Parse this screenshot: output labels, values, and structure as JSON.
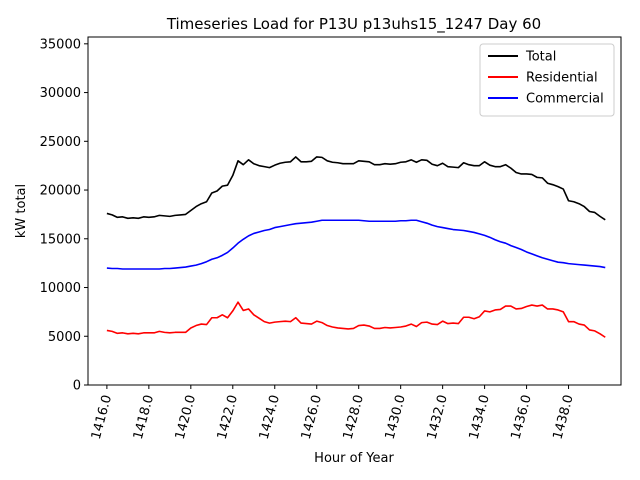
{
  "chart_data": {
    "type": "line",
    "title": "Timeseries Load for P13U p13uhs15_1247  Day 60",
    "xlabel": "Hour of Year",
    "ylabel": "kW total",
    "xlim": [
      1415.1,
      1440.5
    ],
    "ylim": [
      0,
      35700
    ],
    "xticks": [
      1416,
      1418,
      1420,
      1422,
      1424,
      1426,
      1428,
      1430,
      1432,
      1434,
      1436,
      1438
    ],
    "xtick_labels": [
      "1416.0",
      "1418.0",
      "1420.0",
      "1422.0",
      "1424.0",
      "1426.0",
      "1428.0",
      "1430.0",
      "1432.0",
      "1434.0",
      "1436.0",
      "1438.0"
    ],
    "yticks": [
      0,
      5000,
      10000,
      15000,
      20000,
      25000,
      30000,
      35000
    ],
    "ytick_labels": [
      "0",
      "5000",
      "10000",
      "15000",
      "20000",
      "25000",
      "30000",
      "35000"
    ],
    "legend_position": "top-right",
    "x": [
      1416.0,
      1416.25,
      1416.5,
      1416.75,
      1417.0,
      1417.25,
      1417.5,
      1417.75,
      1418.0,
      1418.25,
      1418.5,
      1418.75,
      1419.0,
      1419.25,
      1419.5,
      1419.75,
      1420.0,
      1420.25,
      1420.5,
      1420.75,
      1421.0,
      1421.25,
      1421.5,
      1421.75,
      1422.0,
      1422.25,
      1422.5,
      1422.75,
      1423.0,
      1423.25,
      1423.5,
      1423.75,
      1424.0,
      1424.25,
      1424.5,
      1424.75,
      1425.0,
      1425.25,
      1425.5,
      1425.75,
      1426.0,
      1426.25,
      1426.5,
      1426.75,
      1427.0,
      1427.25,
      1427.5,
      1427.75,
      1428.0,
      1428.25,
      1428.5,
      1428.75,
      1429.0,
      1429.25,
      1429.5,
      1429.75,
      1430.0,
      1430.25,
      1430.5,
      1430.75,
      1431.0,
      1431.25,
      1431.5,
      1431.75,
      1432.0,
      1432.25,
      1432.5,
      1432.75,
      1433.0,
      1433.25,
      1433.5,
      1433.75,
      1434.0,
      1434.25,
      1434.5,
      1434.75,
      1435.0,
      1435.25,
      1435.5,
      1435.75,
      1436.0,
      1436.25,
      1436.5,
      1436.75,
      1437.0,
      1437.25,
      1437.5,
      1437.75,
      1438.0,
      1438.25,
      1438.5,
      1438.75,
      1439.0,
      1439.25,
      1439.5,
      1439.75
    ],
    "series": [
      {
        "name": "Total",
        "color": "#000000",
        "values": [
          17600,
          17450,
          17200,
          17250,
          17100,
          17150,
          17100,
          17250,
          17200,
          17250,
          17400,
          17350,
          17300,
          17400,
          17450,
          17500,
          17900,
          18300,
          18600,
          18800,
          19700,
          19900,
          20400,
          20500,
          21500,
          23000,
          22600,
          23100,
          22700,
          22500,
          22400,
          22300,
          22550,
          22750,
          22850,
          22900,
          23400,
          22900,
          22900,
          22950,
          23400,
          23350,
          23000,
          22850,
          22800,
          22700,
          22700,
          22700,
          23000,
          22950,
          22900,
          22600,
          22600,
          22700,
          22650,
          22700,
          22850,
          22900,
          23100,
          22850,
          23100,
          23050,
          22650,
          22500,
          22750,
          22400,
          22350,
          22300,
          22800,
          22600,
          22500,
          22500,
          22900,
          22550,
          22400,
          22400,
          22600,
          22250,
          21800,
          21650,
          21650,
          21600,
          21300,
          21250,
          20700,
          20550,
          20350,
          20100,
          18900,
          18800,
          18600,
          18300,
          17800,
          17700,
          17300,
          16950
        ]
      },
      {
        "name": "Residential",
        "color": "#ff0000",
        "values": [
          5600,
          5500,
          5300,
          5350,
          5250,
          5300,
          5250,
          5350,
          5350,
          5350,
          5500,
          5400,
          5350,
          5400,
          5400,
          5400,
          5850,
          6100,
          6250,
          6200,
          6900,
          6900,
          7200,
          6900,
          7600,
          8500,
          7650,
          7800,
          7200,
          6850,
          6500,
          6350,
          6450,
          6500,
          6550,
          6500,
          6900,
          6350,
          6300,
          6250,
          6550,
          6400,
          6100,
          5950,
          5850,
          5800,
          5750,
          5800,
          6100,
          6150,
          6050,
          5800,
          5800,
          5900,
          5850,
          5900,
          5950,
          6050,
          6250,
          6000,
          6400,
          6450,
          6250,
          6200,
          6550,
          6300,
          6350,
          6300,
          6950,
          6950,
          6800,
          7000,
          7600,
          7500,
          7700,
          7750,
          8100,
          8100,
          7800,
          7850,
          8050,
          8200,
          8100,
          8200,
          7800,
          7800,
          7700,
          7500,
          6500,
          6500,
          6250,
          6150,
          5650,
          5550,
          5250,
          4900
        ]
      },
      {
        "name": "Commercial",
        "color": "#0000ff",
        "values": [
          12000,
          11950,
          11950,
          11900,
          11900,
          11900,
          11900,
          11900,
          11900,
          11900,
          11900,
          11950,
          11950,
          12000,
          12050,
          12100,
          12200,
          12300,
          12450,
          12650,
          12900,
          13050,
          13300,
          13600,
          14050,
          14550,
          14950,
          15300,
          15550,
          15700,
          15850,
          15950,
          16150,
          16250,
          16350,
          16450,
          16550,
          16600,
          16650,
          16700,
          16800,
          16900,
          16900,
          16900,
          16900,
          16900,
          16900,
          16900,
          16900,
          16850,
          16800,
          16800,
          16800,
          16800,
          16800,
          16800,
          16850,
          16850,
          16900,
          16900,
          16750,
          16600,
          16400,
          16250,
          16150,
          16050,
          15950,
          15900,
          15850,
          15750,
          15650,
          15500,
          15350,
          15150,
          14900,
          14700,
          14550,
          14300,
          14100,
          13900,
          13650,
          13450,
          13250,
          13050,
          12900,
          12750,
          12600,
          12550,
          12450,
          12400,
          12350,
          12300,
          12250,
          12200,
          12150,
          12050
        ]
      }
    ]
  }
}
